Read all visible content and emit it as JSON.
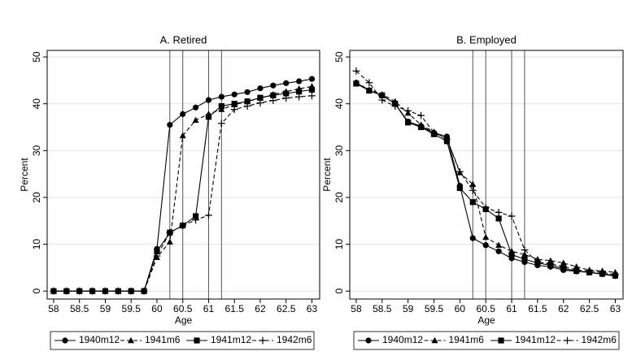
{
  "chart_data": [
    {
      "type": "line",
      "title": "A. Retired",
      "xlabel": "Age",
      "ylabel": "Percent",
      "x": [
        58,
        58.25,
        58.5,
        58.75,
        59,
        59.25,
        59.5,
        59.75,
        60,
        60.25,
        60.5,
        60.75,
        61,
        61.25,
        61.5,
        61.75,
        62,
        62.25,
        62.5,
        62.75,
        63
      ],
      "series": [
        {
          "name": "1940m12",
          "color": "#000000",
          "marker": "circle",
          "dash": false,
          "values": [
            0,
            0,
            0,
            0,
            0,
            0,
            0,
            0,
            9,
            35.5,
            37.8,
            39.2,
            40.8,
            41.5,
            42,
            42.5,
            43.3,
            43.9,
            44.4,
            44.8,
            45.3
          ]
        },
        {
          "name": "1941m6",
          "color": "#000000",
          "marker": "triangle",
          "dash": true,
          "values": [
            0,
            0,
            0,
            0,
            0,
            0,
            0,
            0,
            7.2,
            10.5,
            33.2,
            36.5,
            37.8,
            38.8,
            39.8,
            40.5,
            41.2,
            42,
            42.6,
            43.2,
            43.7
          ]
        },
        {
          "name": "1941m12",
          "color": "#000000",
          "marker": "square",
          "dash": false,
          "values": [
            0,
            0,
            0,
            0,
            0,
            0,
            0,
            0,
            8.5,
            12.5,
            14,
            16,
            37.2,
            39.5,
            40,
            40.5,
            41.3,
            41.8,
            42.2,
            42.6,
            43
          ]
        },
        {
          "name": "1942m6",
          "color": "#000000",
          "marker": "plus",
          "dash": true,
          "values": [
            0,
            0,
            0,
            0,
            0,
            0,
            0,
            0,
            7.5,
            12.5,
            14,
            15.2,
            16.2,
            35.8,
            38.8,
            39.5,
            40.2,
            40.7,
            41.2,
            41.5,
            41.7
          ]
        }
      ],
      "vlines": [
        60.25,
        60.5,
        61,
        61.25
      ],
      "xlim": [
        57.875,
        63.15
      ],
      "ylim": [
        -1.7,
        51.4
      ],
      "xticks": [
        58,
        58.5,
        59,
        59.5,
        60,
        60.5,
        61,
        61.5,
        62,
        62.5,
        63
      ],
      "yticks": [
        0,
        10,
        20,
        30,
        40,
        50
      ],
      "grid": true,
      "legend": "bottom"
    },
    {
      "type": "line",
      "title": "B. Employed",
      "xlabel": "Age",
      "ylabel": "Percent",
      "x": [
        58,
        58.25,
        58.5,
        58.75,
        59,
        59.25,
        59.5,
        59.75,
        60,
        60.25,
        60.5,
        60.75,
        61,
        61.25,
        61.5,
        61.75,
        62,
        62.25,
        62.5,
        62.75,
        63
      ],
      "series": [
        {
          "name": "1940m12",
          "color": "#000000",
          "marker": "circle",
          "dash": false,
          "values": [
            44.5,
            42.8,
            41.8,
            40,
            36.2,
            35.2,
            33.8,
            33,
            22.5,
            11.3,
            9.8,
            8.5,
            7,
            6.2,
            5.5,
            5.2,
            4.5,
            4.2,
            4,
            3.6,
            3.2
          ]
        },
        {
          "name": "1941m6",
          "color": "#000000",
          "marker": "triangle",
          "dash": true,
          "values": [
            44.5,
            43,
            42,
            40.5,
            38,
            35.5,
            34,
            32.5,
            25.3,
            22.8,
            11.5,
            9.8,
            8.5,
            7.8,
            6.8,
            6.5,
            6,
            5.2,
            4.5,
            4.3,
            4
          ]
        },
        {
          "name": "1941m12",
          "color": "#000000",
          "marker": "square",
          "dash": false,
          "values": [
            44.3,
            42.8,
            41.8,
            40,
            36,
            35,
            33.5,
            32,
            22,
            19,
            17.5,
            15.5,
            7.8,
            6.8,
            6,
            5.5,
            4.8,
            4.3,
            4,
            3.7,
            3.3
          ]
        },
        {
          "name": "1942m6",
          "color": "#000000",
          "marker": "plus",
          "dash": true,
          "values": [
            47,
            44.5,
            40.8,
            39.5,
            38.5,
            37.5,
            33.8,
            32.5,
            25.5,
            21.5,
            17.8,
            16.8,
            16,
            8.8,
            6.2,
            5.8,
            5.2,
            4.5,
            4.3,
            4,
            3.5
          ]
        }
      ],
      "vlines": [
        60.25,
        60.5,
        61,
        61.25
      ],
      "xlim": [
        57.875,
        63.15
      ],
      "ylim": [
        -1.7,
        51.4
      ],
      "xticks": [
        58,
        58.5,
        59,
        59.5,
        60,
        60.5,
        61,
        61.5,
        62,
        62.5,
        63
      ],
      "yticks": [
        0,
        10,
        20,
        30,
        40,
        50
      ],
      "grid": true,
      "legend": "bottom"
    }
  ]
}
